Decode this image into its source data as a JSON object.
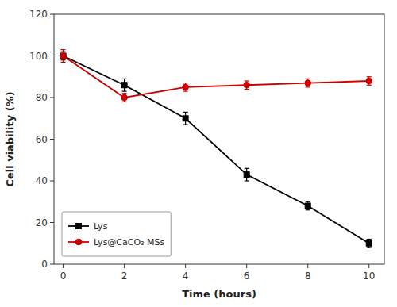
{
  "chart_data": {
    "type": "line",
    "x_label": "Time (hours)",
    "y_label": "Cell viability (%)",
    "x": [
      0,
      2,
      4,
      6,
      8,
      10
    ],
    "series": [
      {
        "name": "Lys",
        "color": "#000000",
        "marker": "square",
        "values": [
          100,
          86,
          70,
          43,
          28,
          10
        ],
        "errors": [
          2,
          3,
          3,
          3,
          2,
          2
        ]
      },
      {
        "name": "Lys@CaCO₃ MSs",
        "color": "#cc0000",
        "marker": "circle",
        "values": [
          100,
          80,
          85,
          86,
          87,
          88
        ],
        "errors": [
          3,
          2,
          2,
          2,
          2,
          2
        ]
      }
    ],
    "xlim": [
      -0.3,
      10.5
    ],
    "ylim": [
      0,
      120
    ],
    "xticks": [
      0,
      2,
      4,
      6,
      8,
      10
    ],
    "yticks": [
      0,
      20,
      40,
      60,
      80,
      100,
      120
    ],
    "grid": false,
    "legend": "lower left"
  }
}
